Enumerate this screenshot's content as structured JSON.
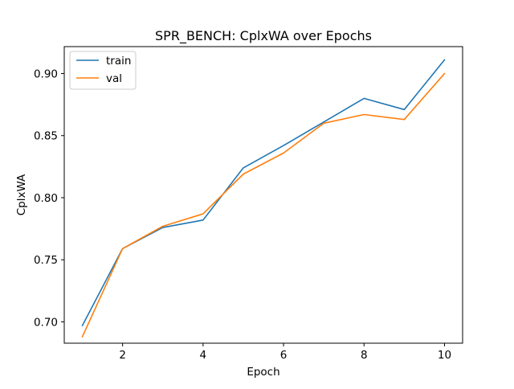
{
  "chart_data": {
    "type": "line",
    "title": "SPR_BENCH: CplxWA over Epochs",
    "xlabel": "Epoch",
    "ylabel": "CplxWA",
    "xlim": [
      0.55,
      10.45
    ],
    "ylim": [
      0.6828,
      0.9217
    ],
    "x_ticks": [
      2,
      4,
      6,
      8,
      10
    ],
    "x_tick_labels": [
      "2",
      "4",
      "6",
      "8",
      "10"
    ],
    "y_ticks": [
      0.7,
      0.75,
      0.8,
      0.85,
      0.9
    ],
    "y_tick_labels": [
      "0.70",
      "0.75",
      "0.80",
      "0.85",
      "0.90"
    ],
    "grid": false,
    "legend_position": "top-left",
    "x": [
      1,
      2,
      3,
      4,
      5,
      6,
      7,
      8,
      9,
      10
    ],
    "series": [
      {
        "name": "train",
        "color": "#1f77b4",
        "values": [
          0.697,
          0.759,
          0.776,
          0.782,
          0.824,
          0.842,
          0.861,
          0.88,
          0.871,
          0.911
        ]
      },
      {
        "name": "val",
        "color": "#ff7f0e",
        "values": [
          0.688,
          0.759,
          0.777,
          0.787,
          0.819,
          0.836,
          0.86,
          0.867,
          0.863,
          0.9
        ]
      }
    ]
  }
}
